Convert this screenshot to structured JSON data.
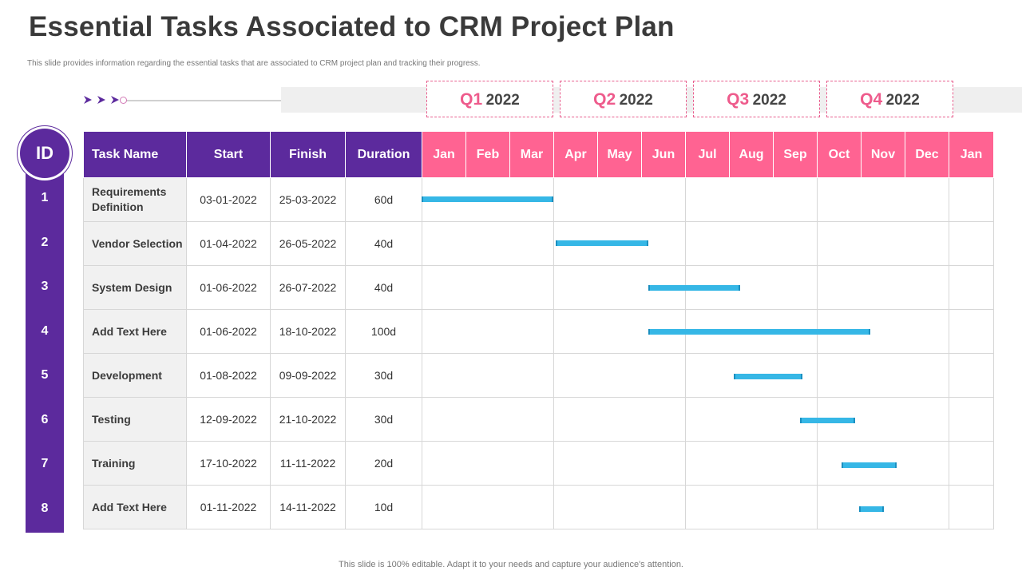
{
  "page": {
    "title": "Essential Tasks Associated to CRM Project Plan",
    "subtitle": "This slide provides information regarding the essential tasks that are associated to CRM project plan and tracking their progress.",
    "footer": "This slide is 100% editable. Adapt it to your needs and capture your audience's attention."
  },
  "colors": {
    "purple": "#5c2a9d",
    "pink": "#ff6392",
    "bar": "#36b7e6"
  },
  "quarters": [
    {
      "q": "Q1",
      "year": "2022"
    },
    {
      "q": "Q2",
      "year": "2022"
    },
    {
      "q": "Q3",
      "year": "2022"
    },
    {
      "q": "Q4",
      "year": "2022"
    }
  ],
  "table": {
    "id_label": "ID",
    "headers": {
      "task": "Task Name",
      "start": "Start",
      "finish": "Finish",
      "duration": "Duration"
    },
    "months": [
      "Jan",
      "Feb",
      "Mar",
      "Apr",
      "May",
      "Jun",
      "Jul",
      "Aug",
      "Sep",
      "Oct",
      "Nov",
      "Dec",
      "Jan"
    ]
  },
  "chart_data": {
    "type": "gantt",
    "title": "Essential Tasks Associated to CRM Project Plan",
    "time_unit": "month-index (0 = start of Jan 2022)",
    "tasks": [
      {
        "id": "1",
        "name": "Requirements Definition",
        "start": "03-01-2022",
        "finish": "25-03-2022",
        "duration": "60d",
        "bar_start": 0.0,
        "bar_end": 3.0
      },
      {
        "id": "2",
        "name": "Vendor Selection",
        "start": "01-04-2022",
        "finish": "26-05-2022",
        "duration": "40d",
        "bar_start": 3.05,
        "bar_end": 5.15
      },
      {
        "id": "3",
        "name": "System Design",
        "start": "01-06-2022",
        "finish": "26-07-2022",
        "duration": "40d",
        "bar_start": 5.15,
        "bar_end": 7.25
      },
      {
        "id": "4",
        "name": "Add Text Here",
        "start": "01-06-2022",
        "finish": "18-10-2022",
        "duration": "100d",
        "bar_start": 5.15,
        "bar_end": 10.2
      },
      {
        "id": "5",
        "name": "Development",
        "start": "01-08-2022",
        "finish": "09-09-2022",
        "duration": "30d",
        "bar_start": 7.1,
        "bar_end": 8.65
      },
      {
        "id": "6",
        "name": "Testing",
        "start": "12-09-2022",
        "finish": "21-10-2022",
        "duration": "30d",
        "bar_start": 8.6,
        "bar_end": 9.85
      },
      {
        "id": "7",
        "name": "Training",
        "start": "17-10-2022",
        "finish": "11-11-2022",
        "duration": "20d",
        "bar_start": 9.55,
        "bar_end": 10.8
      },
      {
        "id": "8",
        "name": "Add Text Here",
        "start": "01-11-2022",
        "finish": "14-11-2022",
        "duration": "10d",
        "bar_start": 9.95,
        "bar_end": 10.5
      }
    ]
  }
}
